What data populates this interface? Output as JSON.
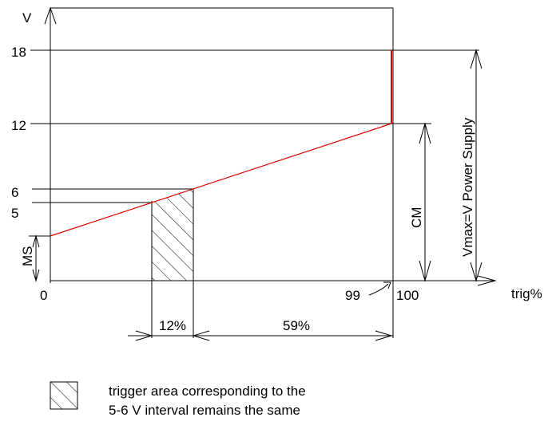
{
  "axes": {
    "y_label": "V",
    "x_label": "trig%",
    "y_ticks": [
      "18",
      "12",
      "6",
      "5"
    ],
    "x_ticks": [
      "0",
      "99",
      "100"
    ]
  },
  "dimensions": {
    "ms_label": "MS",
    "cm_label": "CM",
    "vmax_label": "Vmax=V Power Supply",
    "pct_12_label": "12%",
    "pct_59_label": "59%"
  },
  "legend": {
    "line1": "trigger area corresponding to the",
    "line2": "5-6 V interval remains the same"
  },
  "colors": {
    "trace": "#e00000",
    "ink": "#000000"
  }
}
